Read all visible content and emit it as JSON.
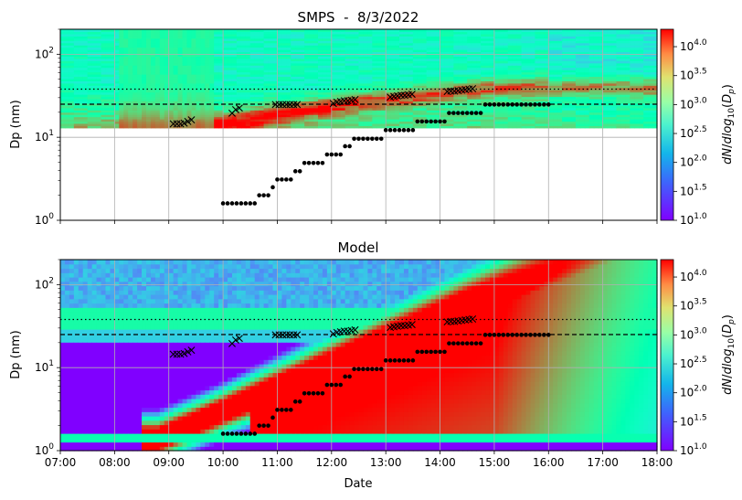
{
  "chart_data": [
    {
      "type": "heatmap",
      "title": "SMPS  -  8/3/2022",
      "xlabel": "",
      "ylabel": "Dp (nm)",
      "yscale": "log",
      "ylim": [
        1,
        200
      ],
      "y_ticks": [
        "10^0",
        "10^1",
        "10^2"
      ],
      "xlim": [
        "07:00",
        "18:00"
      ],
      "x_ticklabels_shown": false,
      "grid": true,
      "data_coverage_dp_nm": [
        13,
        200
      ],
      "reference_lines": [
        {
          "style": "dotted",
          "dp_nm": 38
        },
        {
          "style": "dashed",
          "dp_nm": 25
        }
      ],
      "colorbar": {
        "label": "dN/dlog10(Dp)",
        "scale": "log",
        "range": [
          10,
          20000
        ],
        "ticks": [
          "10^1.0",
          "10^1.5",
          "10^2.0",
          "10^2.5",
          "10^3.0",
          "10^3.5",
          "10^4.0"
        ],
        "colormap": "rainbow"
      }
    },
    {
      "type": "heatmap",
      "title": "Model",
      "xlabel": "Date",
      "ylabel": "Dp (nm)",
      "yscale": "log",
      "ylim": [
        1,
        200
      ],
      "y_ticks": [
        "10^0",
        "10^1",
        "10^2"
      ],
      "xlim": [
        "07:00",
        "18:00"
      ],
      "x_ticks": [
        "07:00",
        "08:00",
        "09:00",
        "10:00",
        "11:00",
        "12:00",
        "13:00",
        "14:00",
        "15:00",
        "16:00",
        "17:00",
        "18:00"
      ],
      "grid": true,
      "reference_lines": [
        {
          "style": "dotted",
          "dp_nm": 38
        },
        {
          "style": "dashed",
          "dp_nm": 25
        }
      ],
      "colorbar": {
        "label": "dN/dlog10(Dp)",
        "scale": "log",
        "range": [
          10,
          20000
        ],
        "ticks": [
          "10^1.0",
          "10^1.5",
          "10^2.0",
          "10^2.5",
          "10^3.0",
          "10^3.5",
          "10^4.0"
        ],
        "colormap": "rainbow"
      }
    }
  ],
  "overlays": {
    "dots": [
      {
        "t": "10:00",
        "dp": 1.6
      },
      {
        "t": "10:05",
        "dp": 1.6
      },
      {
        "t": "10:10",
        "dp": 1.6
      },
      {
        "t": "10:15",
        "dp": 1.6
      },
      {
        "t": "10:20",
        "dp": 1.6
      },
      {
        "t": "10:25",
        "dp": 1.6
      },
      {
        "t": "10:30",
        "dp": 1.6
      },
      {
        "t": "10:35",
        "dp": 1.6
      },
      {
        "t": "10:40",
        "dp": 2.0
      },
      {
        "t": "10:45",
        "dp": 2.0
      },
      {
        "t": "10:50",
        "dp": 2.0
      },
      {
        "t": "10:55",
        "dp": 2.5
      },
      {
        "t": "11:00",
        "dp": 3.1
      },
      {
        "t": "11:05",
        "dp": 3.1
      },
      {
        "t": "11:10",
        "dp": 3.1
      },
      {
        "t": "11:15",
        "dp": 3.1
      },
      {
        "t": "11:20",
        "dp": 3.9
      },
      {
        "t": "11:25",
        "dp": 3.9
      },
      {
        "t": "11:30",
        "dp": 4.9
      },
      {
        "t": "11:35",
        "dp": 4.9
      },
      {
        "t": "11:40",
        "dp": 4.9
      },
      {
        "t": "11:45",
        "dp": 4.9
      },
      {
        "t": "11:50",
        "dp": 4.9
      },
      {
        "t": "11:55",
        "dp": 6.2
      },
      {
        "t": "12:00",
        "dp": 6.2
      },
      {
        "t": "12:05",
        "dp": 6.2
      },
      {
        "t": "12:10",
        "dp": 6.2
      },
      {
        "t": "12:15",
        "dp": 7.8
      },
      {
        "t": "12:20",
        "dp": 7.8
      },
      {
        "t": "12:25",
        "dp": 9.6
      },
      {
        "t": "12:30",
        "dp": 9.6
      },
      {
        "t": "12:35",
        "dp": 9.6
      },
      {
        "t": "12:40",
        "dp": 9.6
      },
      {
        "t": "12:45",
        "dp": 9.6
      },
      {
        "t": "12:50",
        "dp": 9.6
      },
      {
        "t": "12:55",
        "dp": 9.6
      },
      {
        "t": "13:00",
        "dp": 12.2
      },
      {
        "t": "13:05",
        "dp": 12.2
      },
      {
        "t": "13:10",
        "dp": 12.2
      },
      {
        "t": "13:15",
        "dp": 12.2
      },
      {
        "t": "13:20",
        "dp": 12.2
      },
      {
        "t": "13:25",
        "dp": 12.2
      },
      {
        "t": "13:30",
        "dp": 12.2
      },
      {
        "t": "13:35",
        "dp": 15.5
      },
      {
        "t": "13:40",
        "dp": 15.5
      },
      {
        "t": "13:45",
        "dp": 15.5
      },
      {
        "t": "13:50",
        "dp": 15.5
      },
      {
        "t": "13:55",
        "dp": 15.5
      },
      {
        "t": "14:00",
        "dp": 15.5
      },
      {
        "t": "14:05",
        "dp": 15.5
      },
      {
        "t": "14:10",
        "dp": 19.6
      },
      {
        "t": "14:15",
        "dp": 19.6
      },
      {
        "t": "14:20",
        "dp": 19.6
      },
      {
        "t": "14:25",
        "dp": 19.6
      },
      {
        "t": "14:30",
        "dp": 19.6
      },
      {
        "t": "14:35",
        "dp": 19.6
      },
      {
        "t": "14:40",
        "dp": 19.6
      },
      {
        "t": "14:45",
        "dp": 19.6
      },
      {
        "t": "14:50",
        "dp": 24.8
      },
      {
        "t": "14:55",
        "dp": 24.8
      },
      {
        "t": "15:00",
        "dp": 24.8
      },
      {
        "t": "15:05",
        "dp": 24.8
      },
      {
        "t": "15:10",
        "dp": 24.8
      },
      {
        "t": "15:15",
        "dp": 24.8
      },
      {
        "t": "15:20",
        "dp": 24.8
      },
      {
        "t": "15:25",
        "dp": 24.8
      },
      {
        "t": "15:30",
        "dp": 24.8
      },
      {
        "t": "15:35",
        "dp": 24.8
      },
      {
        "t": "15:40",
        "dp": 24.8
      },
      {
        "t": "15:45",
        "dp": 24.8
      },
      {
        "t": "15:50",
        "dp": 24.8
      },
      {
        "t": "15:55",
        "dp": 24.8
      },
      {
        "t": "16:00",
        "dp": 24.8
      }
    ],
    "crosses": [
      {
        "t": "09:05",
        "dp": 14.5
      },
      {
        "t": "09:09",
        "dp": 14.5
      },
      {
        "t": "09:13",
        "dp": 14.5
      },
      {
        "t": "09:17",
        "dp": 14.8
      },
      {
        "t": "09:21",
        "dp": 15.5
      },
      {
        "t": "09:25",
        "dp": 16.2
      },
      {
        "t": "10:10",
        "dp": 19.5
      },
      {
        "t": "10:14",
        "dp": 21.5
      },
      {
        "t": "10:18",
        "dp": 22.5
      },
      {
        "t": "10:58",
        "dp": 24.8
      },
      {
        "t": "11:02",
        "dp": 24.8
      },
      {
        "t": "11:06",
        "dp": 24.8
      },
      {
        "t": "11:10",
        "dp": 24.8
      },
      {
        "t": "11:14",
        "dp": 24.8
      },
      {
        "t": "11:18",
        "dp": 24.8
      },
      {
        "t": "11:22",
        "dp": 24.8
      },
      {
        "t": "12:02",
        "dp": 25.5
      },
      {
        "t": "12:06",
        "dp": 26.5
      },
      {
        "t": "12:10",
        "dp": 27.0
      },
      {
        "t": "12:14",
        "dp": 27.5
      },
      {
        "t": "12:18",
        "dp": 27.5
      },
      {
        "t": "12:22",
        "dp": 28.0
      },
      {
        "t": "12:26",
        "dp": 28.5
      },
      {
        "t": "13:05",
        "dp": 30.5
      },
      {
        "t": "13:09",
        "dp": 31.0
      },
      {
        "t": "13:13",
        "dp": 31.5
      },
      {
        "t": "13:17",
        "dp": 32.0
      },
      {
        "t": "13:21",
        "dp": 32.0
      },
      {
        "t": "13:25",
        "dp": 32.5
      },
      {
        "t": "13:29",
        "dp": 33.0
      },
      {
        "t": "14:08",
        "dp": 35.5
      },
      {
        "t": "14:12",
        "dp": 36.0
      },
      {
        "t": "14:16",
        "dp": 36.0
      },
      {
        "t": "14:20",
        "dp": 36.5
      },
      {
        "t": "14:24",
        "dp": 37.0
      },
      {
        "t": "14:28",
        "dp": 37.5
      },
      {
        "t": "14:32",
        "dp": 38.0
      },
      {
        "t": "14:36",
        "dp": 38.5
      }
    ]
  }
}
